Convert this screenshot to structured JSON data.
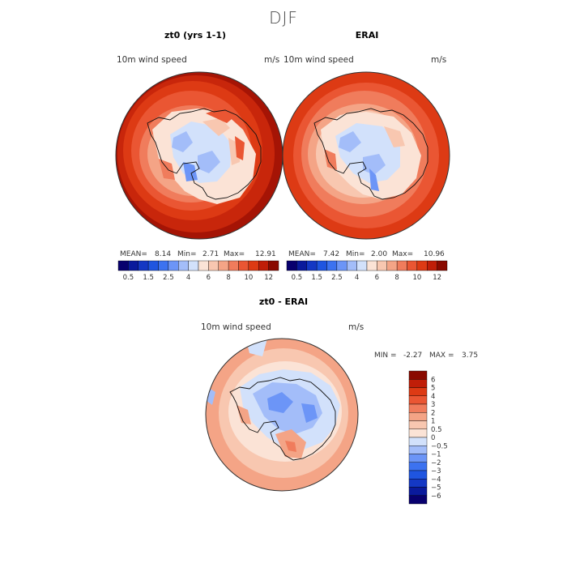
{
  "season_title": "DJF",
  "panels": [
    {
      "title": "zt0 (yrs 1-1)",
      "variable": "10m wind speed",
      "units": "m/s",
      "stats": {
        "mean_label": "MEAN=",
        "mean": "8.14",
        "min_label": "Min=",
        "min": "2.71",
        "max_label": "Max=",
        "max": "12.91"
      }
    },
    {
      "title": "ERAI",
      "variable": "10m wind speed",
      "units": "m/s",
      "stats": {
        "mean_label": "MEAN=",
        "mean": "7.42",
        "min_label": "Min=",
        "min": "2.00",
        "max_label": "Max=",
        "max": "10.96"
      }
    },
    {
      "title": "zt0 - ERAI",
      "variable": "10m wind speed",
      "units": "m/s",
      "stats": {
        "min_label": "MIN =",
        "min": "-2.27",
        "max_label": "MAX =",
        "max": "3.75"
      }
    }
  ],
  "chart_data": [
    {
      "type": "heatmap",
      "projection": "south polar stereographic",
      "title": "zt0 (yrs 1-1)",
      "colorbar": {
        "orientation": "horizontal",
        "levels": [
          0.5,
          1,
          1.5,
          2,
          2.5,
          3,
          4,
          5,
          6,
          7,
          8,
          9,
          10,
          11,
          12
        ],
        "tick_labels": [
          "0.5",
          "1.5",
          "2.5",
          "4",
          "6",
          "8",
          "10",
          "12"
        ],
        "colors": [
          "#08006e",
          "#0a1a9c",
          "#1438c4",
          "#1f55e0",
          "#3c72f0",
          "#6c95f7",
          "#a3bdf9",
          "#d2e1fb",
          "#fbe3d6",
          "#f8c7b0",
          "#f4a486",
          "#f07c5c",
          "#ea5633",
          "#dd3a14",
          "#c01e08",
          "#8a0a00"
        ]
      }
    },
    {
      "type": "heatmap",
      "projection": "south polar stereographic",
      "title": "ERAI",
      "colorbar": {
        "orientation": "horizontal",
        "levels": [
          0.5,
          1,
          1.5,
          2,
          2.5,
          3,
          4,
          5,
          6,
          7,
          8,
          9,
          10,
          11,
          12
        ],
        "tick_labels": [
          "0.5",
          "1.5",
          "2.5",
          "4",
          "6",
          "8",
          "10",
          "12"
        ],
        "colors": [
          "#08006e",
          "#0a1a9c",
          "#1438c4",
          "#1f55e0",
          "#3c72f0",
          "#6c95f7",
          "#a3bdf9",
          "#d2e1fb",
          "#fbe3d6",
          "#f8c7b0",
          "#f4a486",
          "#f07c5c",
          "#ea5633",
          "#dd3a14",
          "#c01e08",
          "#8a0a00"
        ]
      }
    },
    {
      "type": "heatmap",
      "projection": "south polar stereographic",
      "title": "zt0 - ERAI",
      "colorbar": {
        "orientation": "vertical",
        "levels": [
          -6,
          -5,
          -4,
          -3,
          -2,
          -1,
          -0.5,
          0,
          0.5,
          1,
          2,
          3,
          4,
          5,
          6
        ],
        "tick_labels": [
          "6",
          "5",
          "4",
          "3",
          "2",
          "1",
          "0.5",
          "0",
          "−0.5",
          "−1",
          "−2",
          "−3",
          "−4",
          "−5",
          "−6"
        ],
        "colors": [
          "#8a0a00",
          "#c01e08",
          "#dd3a14",
          "#ea5633",
          "#f07c5c",
          "#f4a486",
          "#f8c7b0",
          "#fbe3d6",
          "#d2e1fb",
          "#a3bdf9",
          "#6c95f7",
          "#3c72f0",
          "#1f55e0",
          "#1438c4",
          "#0a1a9c",
          "#08006e"
        ]
      }
    }
  ]
}
